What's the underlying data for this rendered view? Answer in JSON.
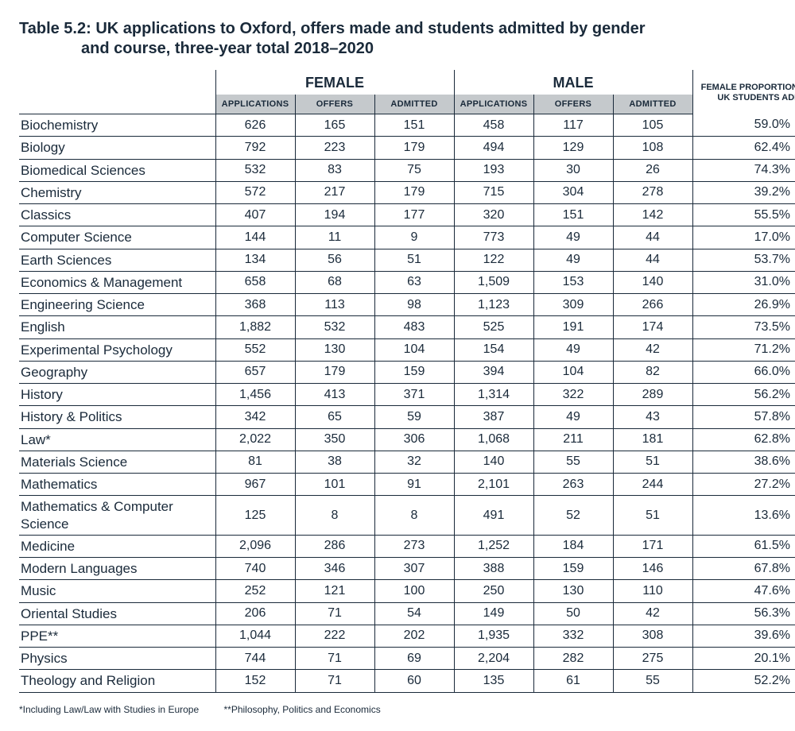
{
  "title_line1": "Table 5.2: UK applications to Oxford, offers made and students admitted by gender",
  "title_line2": "and course, three-year total 2018–2020",
  "headers": {
    "female": "FEMALE",
    "male": "MALE",
    "applications": "APPLICATIONS",
    "offers": "OFFERS",
    "admitted": "ADMITTED",
    "proportion_line1": "FEMALE PROPORTION OF TOTAL",
    "proportion_line2": "UK STUDENTS ADMITTED"
  },
  "colors": {
    "text": "#1a2a3a",
    "rule": "#1a2a3a",
    "header_bg": "#c5c9cc",
    "background": "#ffffff"
  },
  "typography": {
    "title_fontsize_pt": 15,
    "subhead_fontsize_pt": 8,
    "cell_fontsize_pt": 12,
    "footnote_fontsize_pt": 9,
    "font_family": "Arial Narrow / Arial"
  },
  "table": {
    "type": "table",
    "columns": [
      "course",
      "f_applications",
      "f_offers",
      "f_admitted",
      "m_applications",
      "m_offers",
      "m_admitted",
      "female_proportion"
    ],
    "column_alignment": [
      "left",
      "center",
      "center",
      "center",
      "center",
      "center",
      "center",
      "center"
    ],
    "rows": [
      {
        "course": "Biochemistry",
        "f_applications": "626",
        "f_offers": "165",
        "f_admitted": "151",
        "m_applications": "458",
        "m_offers": "117",
        "m_admitted": "105",
        "female_proportion": "59.0%"
      },
      {
        "course": "Biology",
        "f_applications": "792",
        "f_offers": "223",
        "f_admitted": "179",
        "m_applications": "494",
        "m_offers": "129",
        "m_admitted": "108",
        "female_proportion": "62.4%"
      },
      {
        "course": "Biomedical Sciences",
        "f_applications": "532",
        "f_offers": "83",
        "f_admitted": "75",
        "m_applications": "193",
        "m_offers": "30",
        "m_admitted": "26",
        "female_proportion": "74.3%"
      },
      {
        "course": "Chemistry",
        "f_applications": "572",
        "f_offers": "217",
        "f_admitted": "179",
        "m_applications": "715",
        "m_offers": "304",
        "m_admitted": "278",
        "female_proportion": "39.2%"
      },
      {
        "course": "Classics",
        "f_applications": "407",
        "f_offers": "194",
        "f_admitted": "177",
        "m_applications": "320",
        "m_offers": "151",
        "m_admitted": "142",
        "female_proportion": "55.5%"
      },
      {
        "course": "Computer Science",
        "f_applications": "144",
        "f_offers": "11",
        "f_admitted": "9",
        "m_applications": "773",
        "m_offers": "49",
        "m_admitted": "44",
        "female_proportion": "17.0%"
      },
      {
        "course": "Earth Sciences",
        "f_applications": "134",
        "f_offers": "56",
        "f_admitted": "51",
        "m_applications": "122",
        "m_offers": "49",
        "m_admitted": "44",
        "female_proportion": "53.7%"
      },
      {
        "course": "Economics & Management",
        "f_applications": "658",
        "f_offers": "68",
        "f_admitted": "63",
        "m_applications": "1,509",
        "m_offers": "153",
        "m_admitted": "140",
        "female_proportion": "31.0%"
      },
      {
        "course": "Engineering Science",
        "f_applications": "368",
        "f_offers": "113",
        "f_admitted": "98",
        "m_applications": "1,123",
        "m_offers": "309",
        "m_admitted": "266",
        "female_proportion": "26.9%"
      },
      {
        "course": "English",
        "f_applications": "1,882",
        "f_offers": "532",
        "f_admitted": "483",
        "m_applications": "525",
        "m_offers": "191",
        "m_admitted": "174",
        "female_proportion": "73.5%"
      },
      {
        "course": "Experimental Psychology",
        "f_applications": "552",
        "f_offers": "130",
        "f_admitted": "104",
        "m_applications": "154",
        "m_offers": "49",
        "m_admitted": "42",
        "female_proportion": "71.2%"
      },
      {
        "course": "Geography",
        "f_applications": "657",
        "f_offers": "179",
        "f_admitted": "159",
        "m_applications": "394",
        "m_offers": "104",
        "m_admitted": "82",
        "female_proportion": "66.0%"
      },
      {
        "course": "History",
        "f_applications": "1,456",
        "f_offers": "413",
        "f_admitted": "371",
        "m_applications": "1,314",
        "m_offers": "322",
        "m_admitted": "289",
        "female_proportion": "56.2%"
      },
      {
        "course": "History & Politics",
        "f_applications": "342",
        "f_offers": "65",
        "f_admitted": "59",
        "m_applications": "387",
        "m_offers": "49",
        "m_admitted": "43",
        "female_proportion": "57.8%"
      },
      {
        "course": "Law*",
        "f_applications": "2,022",
        "f_offers": "350",
        "f_admitted": "306",
        "m_applications": "1,068",
        "m_offers": "211",
        "m_admitted": "181",
        "female_proportion": "62.8%"
      },
      {
        "course": "Materials Science",
        "f_applications": "81",
        "f_offers": "38",
        "f_admitted": "32",
        "m_applications": "140",
        "m_offers": "55",
        "m_admitted": "51",
        "female_proportion": "38.6%"
      },
      {
        "course": "Mathematics",
        "f_applications": "967",
        "f_offers": "101",
        "f_admitted": "91",
        "m_applications": "2,101",
        "m_offers": "263",
        "m_admitted": "244",
        "female_proportion": "27.2%"
      },
      {
        "course": "Mathematics & Computer Science",
        "f_applications": "125",
        "f_offers": "8",
        "f_admitted": "8",
        "m_applications": "491",
        "m_offers": "52",
        "m_admitted": "51",
        "female_proportion": "13.6%"
      },
      {
        "course": "Medicine",
        "f_applications": "2,096",
        "f_offers": "286",
        "f_admitted": "273",
        "m_applications": "1,252",
        "m_offers": "184",
        "m_admitted": "171",
        "female_proportion": "61.5%"
      },
      {
        "course": "Modern Languages",
        "f_applications": "740",
        "f_offers": "346",
        "f_admitted": "307",
        "m_applications": "388",
        "m_offers": "159",
        "m_admitted": "146",
        "female_proportion": "67.8%"
      },
      {
        "course": "Music",
        "f_applications": "252",
        "f_offers": "121",
        "f_admitted": "100",
        "m_applications": "250",
        "m_offers": "130",
        "m_admitted": "110",
        "female_proportion": "47.6%"
      },
      {
        "course": "Oriental Studies",
        "f_applications": "206",
        "f_offers": "71",
        "f_admitted": "54",
        "m_applications": "149",
        "m_offers": "50",
        "m_admitted": "42",
        "female_proportion": "56.3%"
      },
      {
        "course": "PPE**",
        "f_applications": "1,044",
        "f_offers": "222",
        "f_admitted": "202",
        "m_applications": "1,935",
        "m_offers": "332",
        "m_admitted": "308",
        "female_proportion": "39.6%"
      },
      {
        "course": "Physics",
        "f_applications": "744",
        "f_offers": "71",
        "f_admitted": "69",
        "m_applications": "2,204",
        "m_offers": "282",
        "m_admitted": "275",
        "female_proportion": "20.1%"
      },
      {
        "course": "Theology and Religion",
        "f_applications": "152",
        "f_offers": "71",
        "f_admitted": "60",
        "m_applications": "135",
        "m_offers": "61",
        "m_admitted": "55",
        "female_proportion": "52.2%"
      }
    ]
  },
  "footnotes": {
    "a": "*Including Law/Law with Studies in Europe",
    "b": "**Philosophy, Politics and Economics"
  }
}
